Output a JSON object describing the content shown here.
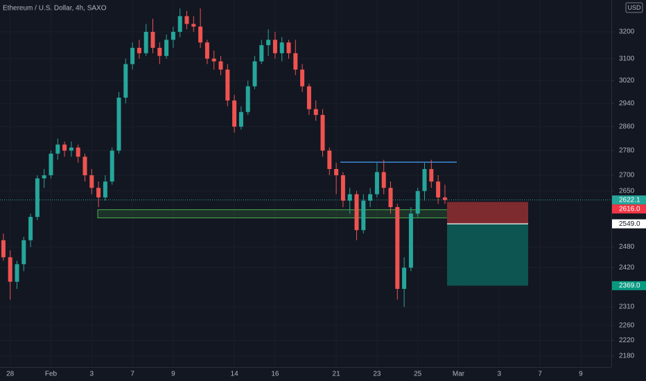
{
  "chart_data": {
    "type": "candlestick",
    "title": "Ethereum / U.S. Dollar, 4h, SAXO",
    "currency": "USD",
    "log_scale": true,
    "grid": true,
    "up_color": "#26a69a",
    "down_color": "#ef5350",
    "categories": [
      null,
      "28",
      null,
      null,
      null,
      null,
      null,
      "Feb",
      null,
      null,
      null,
      null,
      null,
      "3",
      null,
      null,
      null,
      null,
      null,
      "7",
      null,
      null,
      null,
      null,
      null,
      "9",
      null,
      null,
      null,
      null,
      null,
      null,
      null,
      null,
      "14",
      null,
      null,
      null,
      null,
      null,
      "16",
      null,
      null,
      null,
      null,
      null,
      null,
      null,
      null,
      "21",
      null,
      null,
      null,
      null,
      null,
      "23",
      null,
      null,
      null,
      null,
      null,
      "25",
      null,
      null,
      null,
      null,
      null,
      "Mar",
      null,
      null,
      null,
      null,
      null,
      "3",
      null,
      null,
      null,
      null,
      null,
      "7",
      null,
      null,
      null,
      null,
      null,
      "9",
      null,
      null,
      null,
      null
    ],
    "open": [
      2500,
      2450,
      2380,
      2430,
      2500,
      2570,
      2690,
      2700,
      2770,
      2800,
      2780,
      2790,
      2760,
      2700,
      2660,
      2630,
      2680,
      2780,
      2960,
      3080,
      3140,
      3120,
      3200,
      3140,
      3110,
      3170,
      3200,
      3260,
      3230,
      3220,
      3160,
      3100,
      3090,
      3060,
      2950,
      2860,
      2910,
      3000,
      3090,
      3150,
      3170,
      3120,
      3160,
      3120,
      3060,
      3000,
      2920,
      2900,
      2780,
      2720,
      2700,
      2620,
      2640,
      2530,
      2620,
      2640,
      2710,
      2660,
      2600,
      2360,
      2420,
      2580,
      2650,
      2720,
      2680,
      2630,
      null,
      null,
      null,
      null,
      null,
      null,
      null,
      null,
      null,
      null,
      null,
      null,
      null,
      null,
      null,
      null,
      null,
      null,
      null,
      null,
      null,
      null,
      null,
      null
    ],
    "high": [
      2520,
      2470,
      2440,
      2510,
      2580,
      2700,
      2720,
      2780,
      2820,
      2810,
      2810,
      2800,
      2770,
      2720,
      2680,
      2700,
      2790,
      2980,
      3100,
      3160,
      3170,
      3230,
      3250,
      3160,
      3190,
      3220,
      3290,
      3280,
      3260,
      3290,
      3170,
      3130,
      3110,
      3080,
      2970,
      2930,
      3020,
      3110,
      3170,
      3210,
      3200,
      3180,
      3170,
      3170,
      3080,
      3010,
      2950,
      2920,
      2790,
      2740,
      2710,
      2660,
      2650,
      2640,
      2660,
      2740,
      2750,
      2680,
      2610,
      2450,
      2600,
      2660,
      2740,
      2750,
      2700,
      2670,
      null,
      null,
      null,
      null,
      null,
      null,
      null,
      null,
      null,
      null,
      null,
      null,
      null,
      null,
      null,
      null,
      null,
      null,
      null,
      null,
      null,
      null,
      null,
      null
    ],
    "low": [
      2440,
      2330,
      2360,
      2410,
      2480,
      2560,
      2660,
      2690,
      2750,
      2760,
      2760,
      2740,
      2680,
      2640,
      2600,
      2620,
      2670,
      2770,
      2940,
      3060,
      3100,
      3110,
      3120,
      3080,
      3100,
      3140,
      3180,
      3210,
      3200,
      3140,
      3080,
      3060,
      3040,
      2930,
      2840,
      2850,
      2900,
      2990,
      3080,
      3110,
      3100,
      3090,
      3100,
      3040,
      2980,
      2900,
      2880,
      2760,
      2700,
      2640,
      2600,
      2580,
      2500,
      2520,
      2600,
      2630,
      2640,
      2580,
      2330,
      2310,
      2410,
      2570,
      2620,
      2660,
      2610,
      2610,
      null,
      null,
      null,
      null,
      null,
      null,
      null,
      null,
      null,
      null,
      null,
      null,
      null,
      null,
      null,
      null,
      null,
      null,
      null,
      null,
      null,
      null,
      null,
      null
    ],
    "close": [
      2450,
      2380,
      2430,
      2500,
      2570,
      2690,
      2700,
      2770,
      2800,
      2780,
      2790,
      2760,
      2700,
      2660,
      2630,
      2680,
      2780,
      2960,
      3080,
      3140,
      3120,
      3200,
      3140,
      3110,
      3170,
      3200,
      3260,
      3230,
      3220,
      3160,
      3100,
      3090,
      3060,
      2950,
      2860,
      2910,
      3000,
      3090,
      3150,
      3170,
      3120,
      3160,
      3120,
      3060,
      3000,
      2920,
      2900,
      2780,
      2720,
      2700,
      2620,
      2640,
      2530,
      2620,
      2640,
      2710,
      2660,
      2600,
      2360,
      2420,
      2580,
      2650,
      2720,
      2680,
      2630,
      2622,
      null,
      null,
      null,
      null,
      null,
      null,
      null,
      null,
      null,
      null,
      null,
      null,
      null,
      null,
      null,
      null,
      null,
      null,
      null,
      null,
      null,
      null,
      null,
      null
    ],
    "ylim": [
      2151,
      3323
    ],
    "yticks": [
      3200,
      3100,
      3020,
      2940,
      2860,
      2780,
      2700,
      2650,
      2480,
      2420,
      2310,
      2260,
      2220,
      2180
    ],
    "price_tags": [
      {
        "value": 2622.1,
        "label": "2622.1",
        "color": "#26a69a"
      },
      {
        "value": 2616.0,
        "label": "2616.0",
        "color": "#f23645"
      },
      {
        "value": 2549.0,
        "label": "2549.0",
        "color": "#ffffff"
      },
      {
        "value": 2369.0,
        "label": "2369.0",
        "color": "#089981"
      }
    ],
    "support_zone": [
      2567,
      2592
    ],
    "resistance": 2742
  }
}
